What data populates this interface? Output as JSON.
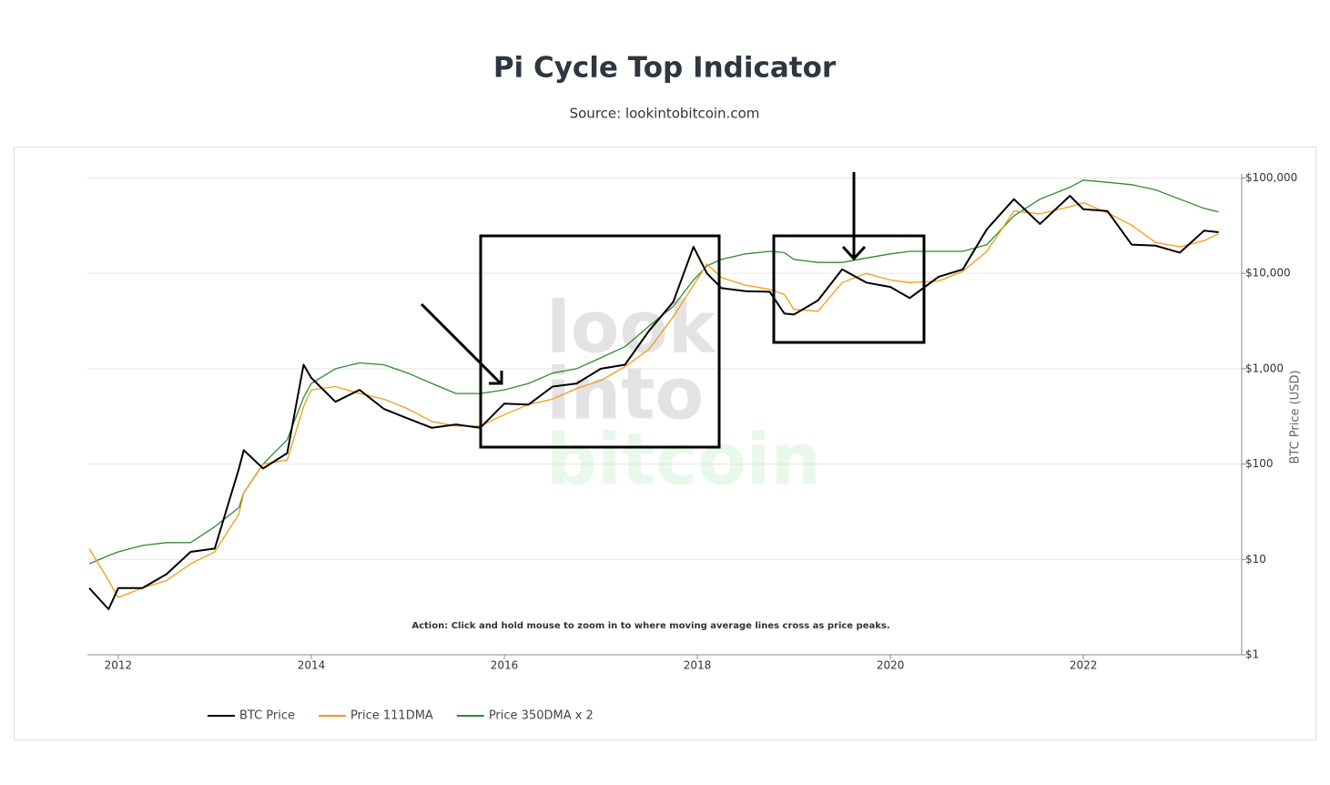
{
  "chart_data": {
    "type": "line",
    "title": "Pi Cycle Top Indicator",
    "subtitle": "Source: lookintobitcoin.com",
    "y_label": "BTC Price (USD)",
    "annotation": "Action: Click and hold mouse to zoom in to where moving average lines cross as price peaks.",
    "watermark": [
      "look",
      "into",
      "bitcoin"
    ],
    "log_y": true,
    "grid": true,
    "legend": "bottom-left",
    "x": [
      2011.7,
      2011.9,
      2012.0,
      2012.25,
      2012.5,
      2012.75,
      2013.0,
      2013.25,
      2013.3,
      2013.5,
      2013.75,
      2013.92,
      2014.0,
      2014.25,
      2014.5,
      2014.75,
      2015.0,
      2015.25,
      2015.5,
      2015.75,
      2016.0,
      2016.25,
      2016.5,
      2016.75,
      2017.0,
      2017.25,
      2017.5,
      2017.75,
      2017.96,
      2018.1,
      2018.25,
      2018.5,
      2018.75,
      2018.9,
      2019.0,
      2019.25,
      2019.5,
      2019.75,
      2020.0,
      2020.2,
      2020.5,
      2020.75,
      2021.0,
      2021.28,
      2021.55,
      2021.86,
      2022.0,
      2022.25,
      2022.5,
      2022.75,
      2023.0,
      2023.25,
      2023.4
    ],
    "series": [
      {
        "name": "BTC Price",
        "color": "#000000",
        "width": 2,
        "values": [
          5,
          3,
          5,
          5,
          7,
          12,
          13,
          90,
          140,
          90,
          130,
          1100,
          800,
          450,
          600,
          380,
          300,
          240,
          260,
          240,
          430,
          420,
          650,
          700,
          1000,
          1100,
          2500,
          5000,
          19000,
          10000,
          7000,
          6500,
          6400,
          3800,
          3700,
          5200,
          11000,
          8000,
          7200,
          5500,
          9200,
          11000,
          29000,
          60000,
          33000,
          65000,
          47000,
          45000,
          20000,
          19500,
          16500,
          28000,
          27000
        ]
      },
      {
        "name": "Price 111DMA",
        "color": "#f39c12",
        "width": 1.3,
        "values": [
          13,
          6,
          4,
          5,
          6,
          9,
          12,
          30,
          50,
          100,
          110,
          400,
          600,
          650,
          550,
          480,
          380,
          280,
          250,
          250,
          330,
          420,
          480,
          620,
          750,
          1050,
          1600,
          3500,
          7500,
          12500,
          9000,
          7500,
          6800,
          6000,
          4200,
          4000,
          8000,
          10000,
          8500,
          8000,
          8300,
          10500,
          17000,
          45000,
          42000,
          50000,
          55000,
          43000,
          32000,
          21000,
          19000,
          22000,
          26000
        ]
      },
      {
        "name": "Price 350DMA x 2",
        "color": "#2e8b2e",
        "width": 1.3,
        "values": [
          9,
          11,
          12,
          14,
          15,
          15,
          22,
          35,
          50,
          100,
          180,
          500,
          700,
          1000,
          1150,
          1100,
          900,
          700,
          550,
          550,
          600,
          700,
          900,
          1000,
          1300,
          1700,
          2800,
          4500,
          8500,
          12000,
          14000,
          16000,
          17000,
          16500,
          14000,
          13000,
          13000,
          14500,
          16000,
          17000,
          17000,
          17000,
          20000,
          40000,
          60000,
          80000,
          95000,
          90000,
          85000,
          75000,
          60000,
          48000,
          44000
        ]
      }
    ],
    "xlim": [
      2011.68,
      2023.64
    ],
    "xticks": [
      2012,
      2014,
      2016,
      2018,
      2020,
      2022
    ],
    "ylim": [
      1,
      150000
    ],
    "yticks": [
      {
        "value": 1,
        "label": "$1"
      },
      {
        "value": 10,
        "label": "$10"
      },
      {
        "value": 100,
        "label": "$100"
      },
      {
        "value": 1000,
        "label": "$1,000"
      },
      {
        "value": 10000,
        "label": "$10,000"
      },
      {
        "value": 100000,
        "label": "$100,000"
      }
    ]
  }
}
